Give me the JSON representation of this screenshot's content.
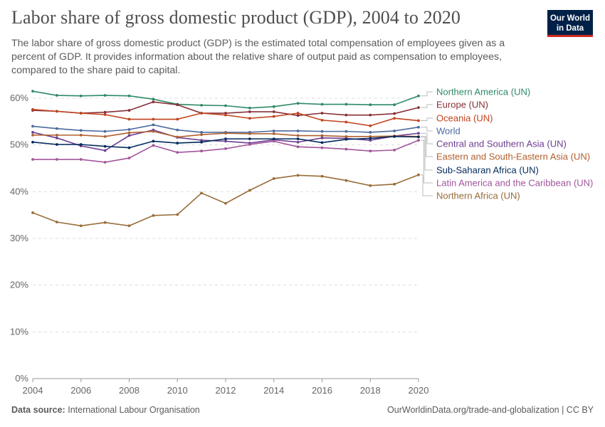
{
  "header": {
    "title": "Labor share of gross domestic product (GDP), 2004 to 2020",
    "subtitle": "The labor share of gross domestic product (GDP) is the estimated total compensation of employees given as a percent of GDP. It provides information about the relative share of output paid as compensation to employees, compared to the share paid to capital.",
    "logo_text": "Our World in Data"
  },
  "footer": {
    "source_label": "Data source:",
    "source": "International Labour Organisation",
    "url": "OurWorldinData.org/trade-and-globalization | CC BY"
  },
  "chart_data": {
    "type": "line",
    "title": "Labor share of gross domestic product (GDP), 2004 to 2020",
    "xlabel": "",
    "ylabel": "",
    "x": [
      2004,
      2005,
      2006,
      2007,
      2008,
      2009,
      2010,
      2011,
      2012,
      2013,
      2014,
      2015,
      2016,
      2017,
      2018,
      2019,
      2020
    ],
    "xticks": [
      "2004",
      "2006",
      "2008",
      "2010",
      "2012",
      "2014",
      "2016",
      "2018",
      "2020"
    ],
    "yticks": [
      "0%",
      "10%",
      "20%",
      "30%",
      "40%",
      "50%",
      "60%"
    ],
    "ylim": [
      0,
      60
    ],
    "grid": "horizontal dashed",
    "legend": "right (line-end labels)",
    "series": [
      {
        "name": "Northern America (UN)",
        "color": "#2f8a67",
        "values": [
          61.5,
          60.6,
          60.5,
          60.6,
          60.5,
          59.8,
          58.7,
          58.5,
          58.4,
          57.9,
          58.2,
          58.9,
          58.7,
          58.7,
          58.6,
          58.6,
          60.5
        ]
      },
      {
        "name": "Europe (UN)",
        "color": "#883039",
        "values": [
          57.4,
          57.2,
          56.8,
          57.0,
          57.4,
          59.2,
          58.6,
          56.8,
          56.8,
          57.1,
          57.1,
          56.3,
          56.8,
          56.4,
          56.4,
          56.7,
          58.0
        ]
      },
      {
        "name": "Oceania (UN)",
        "color": "#c0431c",
        "values": [
          57.6,
          57.2,
          56.8,
          56.5,
          55.5,
          55.5,
          55.5,
          56.8,
          56.4,
          55.7,
          56.1,
          56.8,
          55.3,
          54.9,
          54.1,
          55.7,
          55.2
        ]
      },
      {
        "name": "World",
        "color": "#4c6a9c",
        "values": [
          54.0,
          53.5,
          53.1,
          52.9,
          53.3,
          54.3,
          53.2,
          52.7,
          52.7,
          52.7,
          53.0,
          53.0,
          52.9,
          52.9,
          52.7,
          53.0,
          53.8
        ]
      },
      {
        "name": "Central and Southern Asia (UN)",
        "color": "#6d3e91",
        "values": [
          52.7,
          51.5,
          49.8,
          48.8,
          52.0,
          53.2,
          51.6,
          51.0,
          50.8,
          50.4,
          51.1,
          50.6,
          51.5,
          51.4,
          51.0,
          51.9,
          52.5
        ]
      },
      {
        "name": "Eastern and South-Eastern Asia (UN)",
        "color": "#b0602f",
        "values": [
          52.1,
          52.1,
          52.1,
          51.8,
          52.6,
          52.9,
          51.7,
          52.2,
          52.5,
          52.4,
          52.4,
          52.0,
          52.0,
          51.8,
          51.8,
          51.9,
          51.8
        ]
      },
      {
        "name": "Sub-Saharan Africa (UN)",
        "color": "#00295b",
        "values": [
          50.6,
          50.1,
          50.1,
          49.7,
          49.4,
          50.8,
          50.4,
          50.6,
          51.3,
          51.3,
          51.3,
          51.3,
          50.5,
          51.2,
          51.4,
          51.8,
          51.7
        ]
      },
      {
        "name": "Latin America and the Caribbean (UN)",
        "color": "#a2559c",
        "values": [
          46.9,
          46.9,
          46.9,
          46.3,
          47.2,
          49.9,
          48.4,
          48.7,
          49.2,
          50.1,
          50.8,
          49.6,
          49.4,
          49.1,
          48.7,
          48.9,
          51.0
        ]
      },
      {
        "name": "Northern Africa (UN)",
        "color": "#996d39",
        "values": [
          35.5,
          33.5,
          32.7,
          33.4,
          32.7,
          34.9,
          35.1,
          39.7,
          37.5,
          40.3,
          42.8,
          43.5,
          43.3,
          42.4,
          41.3,
          41.6,
          43.6
        ]
      }
    ]
  }
}
